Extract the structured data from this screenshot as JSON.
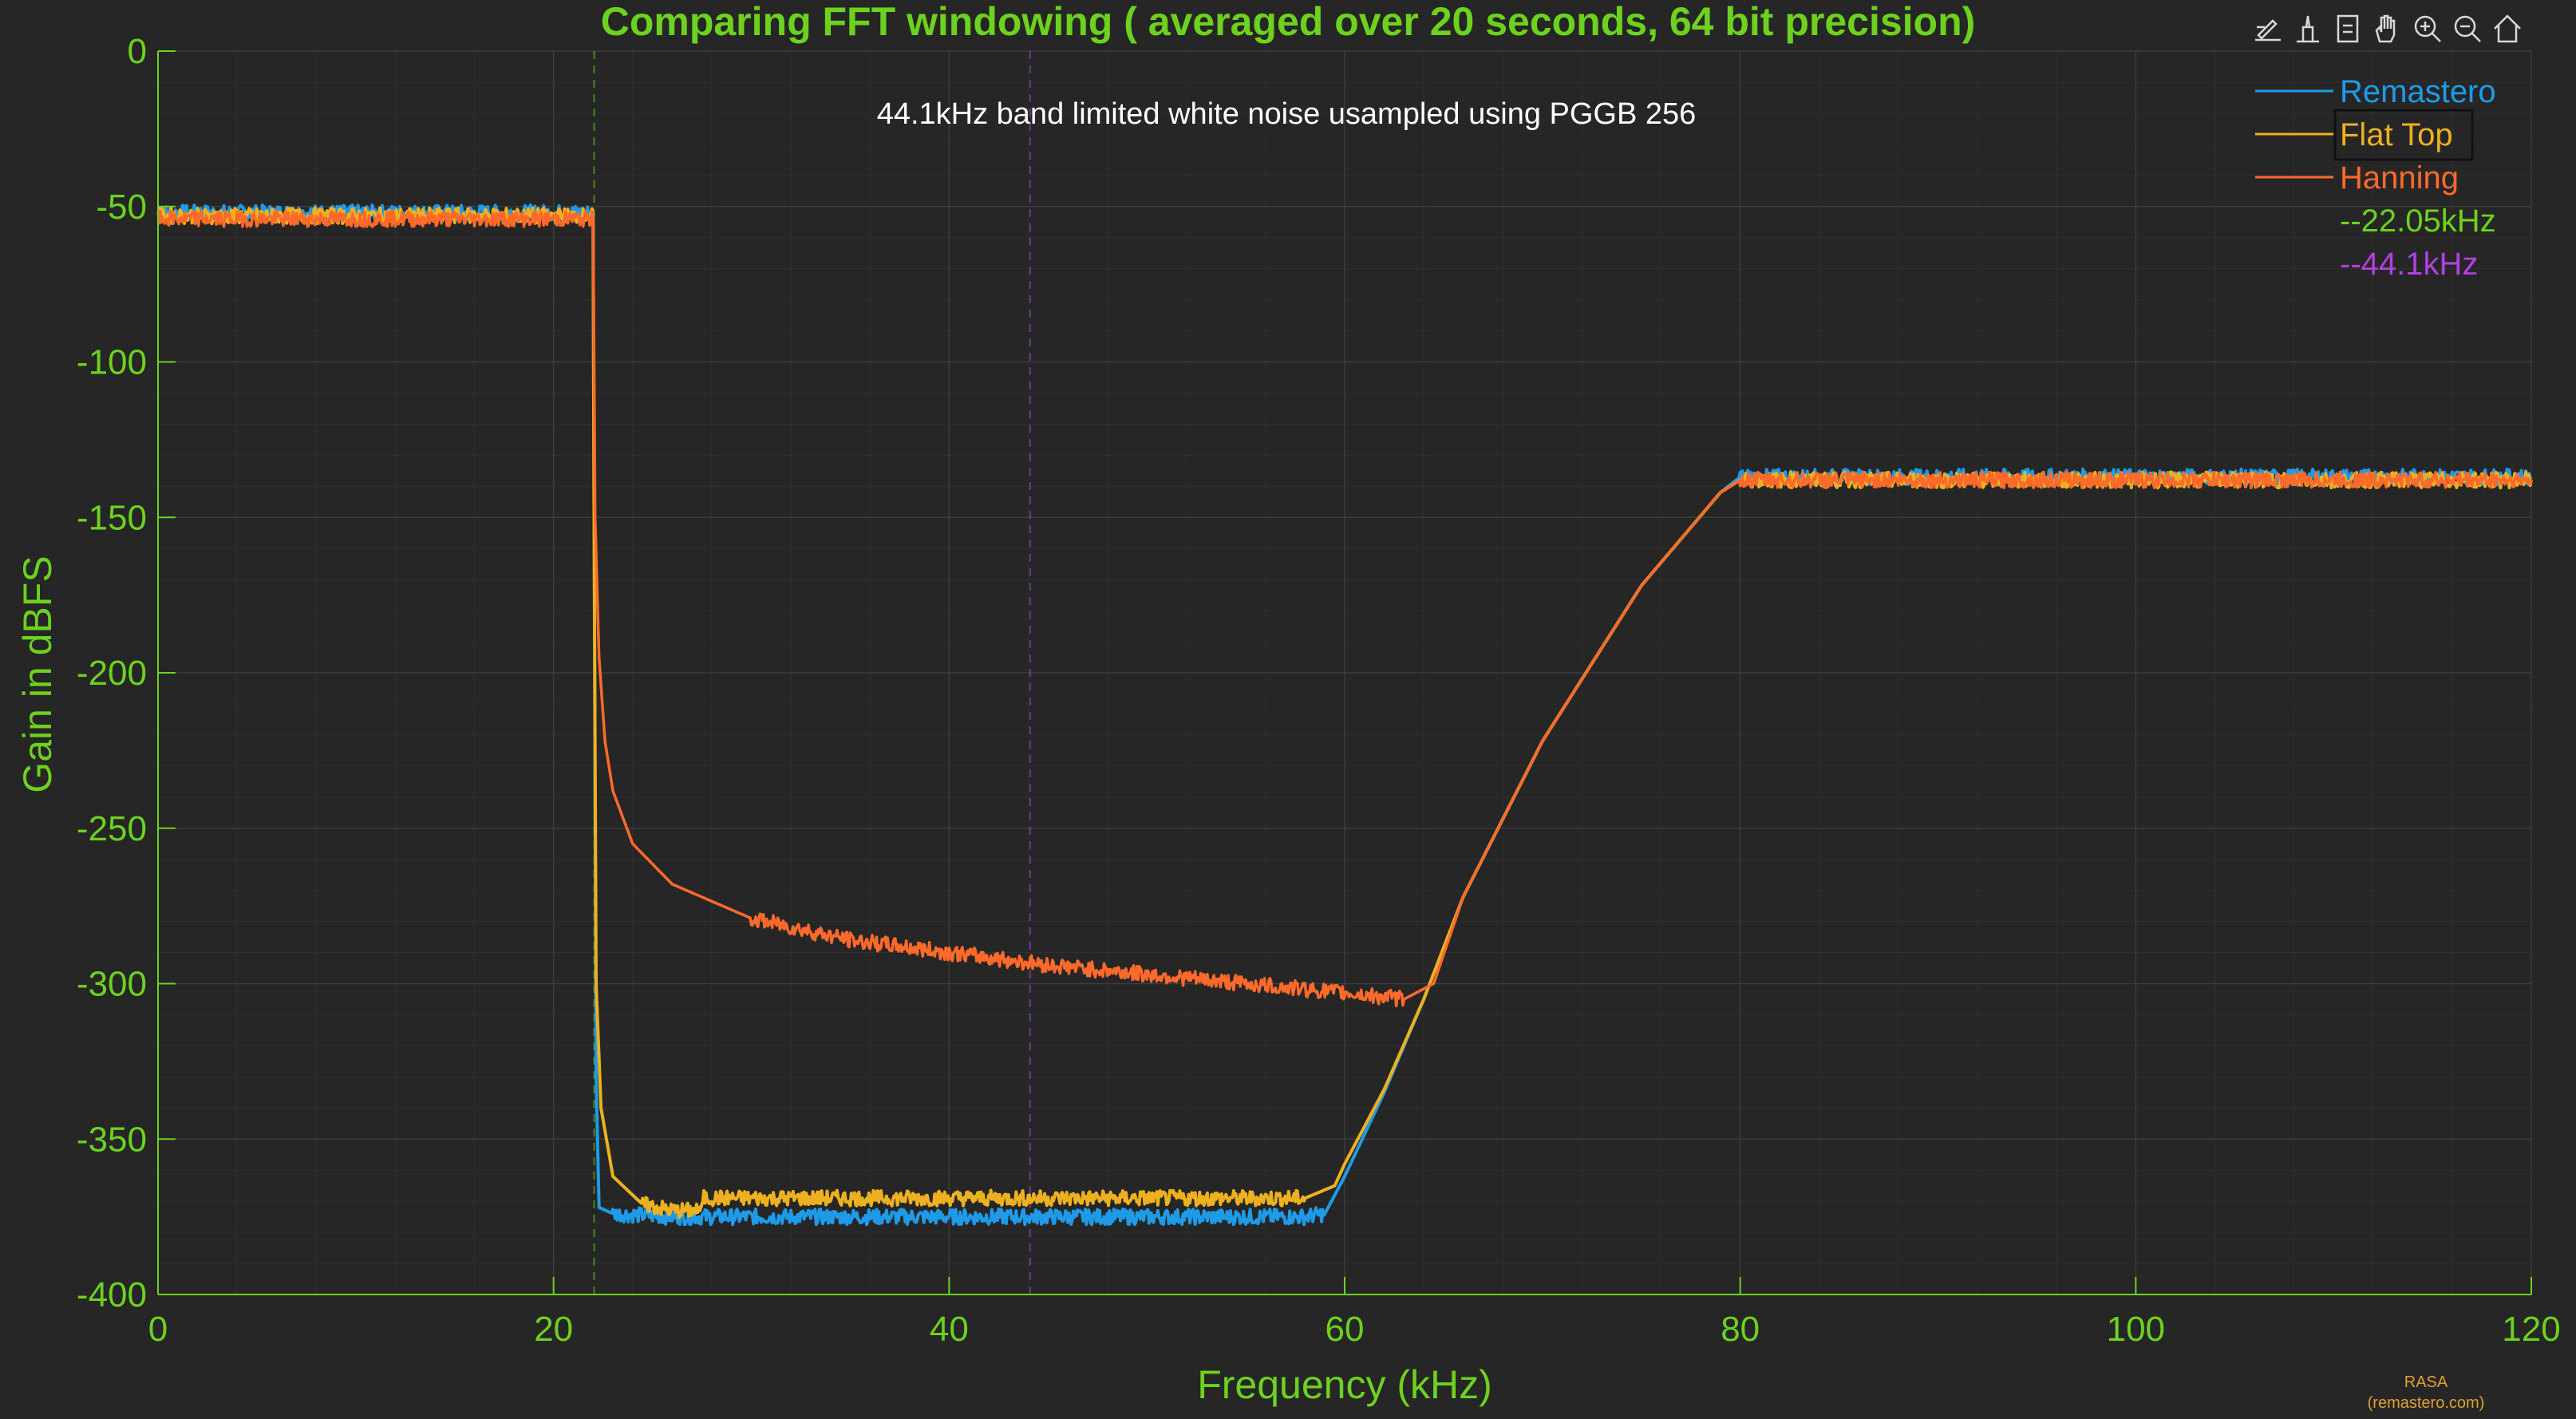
{
  "colors": {
    "background": "#262626",
    "axes_text": "#6CD21E",
    "grid": "#3c3c3c",
    "annotation": "#ffffff",
    "credit": "#E0A030"
  },
  "toolbar": {
    "icons": [
      "brush-icon",
      "data-tips-icon",
      "legend-icon",
      "pan-icon",
      "zoom-in-icon",
      "zoom-out-icon",
      "home-icon"
    ]
  },
  "credit": {
    "line1": "RASA",
    "line2": "(remastero.com)"
  },
  "chart_data": {
    "type": "line",
    "title": "Comparing FFT windowing ( averaged over 20 seconds, 64 bit precision)",
    "annotation": "44.1kHz band limited white noise usampled using PGGB 256",
    "xlabel": "Frequency (kHz)",
    "ylabel": "Gain in dBFS",
    "xlim": [
      0,
      120
    ],
    "ylim": [
      -400,
      0
    ],
    "xticks": [
      0,
      20,
      40,
      60,
      80,
      100,
      120
    ],
    "yticks": [
      0,
      -50,
      -100,
      -150,
      -200,
      -250,
      -300,
      -350,
      -400
    ],
    "grid": true,
    "minor_grid": true,
    "legend_position": "top-right",
    "series": [
      {
        "name": "Remastero",
        "color": "#1E9BE8",
        "x": [
          0,
          22.0,
          22.05,
          22.15,
          22.3,
          23.0,
          26,
          30,
          40,
          50,
          58,
          59,
          60,
          62,
          64,
          66,
          70,
          75,
          79,
          80,
          90,
          100,
          110,
          120
        ],
        "y": [
          -52,
          -52,
          -150,
          -330,
          -372,
          -374,
          -375,
          -375,
          -375,
          -375,
          -375,
          -374,
          -362,
          -335,
          -305,
          -272,
          -222,
          -172,
          -142,
          -137,
          -137,
          -137,
          -137,
          -137
        ]
      },
      {
        "name": "Flat Top",
        "color": "#EDB120",
        "x": [
          0,
          22.0,
          22.05,
          22.15,
          22.4,
          23.0,
          24.5,
          26,
          27.4,
          27.6,
          30,
          40,
          50,
          58,
          59.5,
          60,
          62,
          64,
          66,
          70,
          75,
          79,
          80,
          90,
          100,
          110,
          120
        ],
        "y": [
          -53,
          -53,
          -150,
          -300,
          -340,
          -362,
          -371,
          -373,
          -373,
          -369,
          -369,
          -369,
          -369,
          -369,
          -365,
          -358,
          -334,
          -305,
          -272,
          -222,
          -172,
          -142,
          -138,
          -138,
          -138,
          -138,
          -138
        ]
      },
      {
        "name": "Hanning",
        "color": "#FF6A2A",
        "x": [
          0,
          22.0,
          22.05,
          22.1,
          22.3,
          22.6,
          23.0,
          24,
          26,
          30,
          35,
          40,
          45,
          50,
          55,
          60,
          63,
          64.5,
          66,
          70,
          75,
          79,
          80,
          90,
          100,
          110,
          120
        ],
        "y": [
          -54,
          -54,
          -100,
          -150,
          -195,
          -222,
          -238,
          -255,
          -268,
          -279,
          -286,
          -290,
          -294,
          -297,
          -300,
          -303,
          -305,
          -300,
          -272,
          -222,
          -172,
          -142,
          -138,
          -138,
          -138,
          -138,
          -138
        ]
      }
    ],
    "reference_lines": [
      {
        "label": "--22.05kHz",
        "x": 22.05,
        "color": "#6CD21E"
      },
      {
        "label": "--44.1kHz",
        "x": 44.1,
        "color": "#B040E0"
      }
    ]
  }
}
